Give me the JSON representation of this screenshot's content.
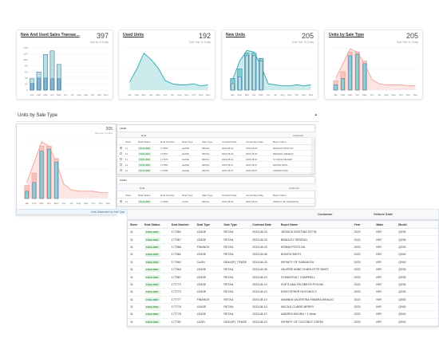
{
  "cards": [
    {
      "title": "New And Used Sales Transac...",
      "number": "397",
      "sub": "Total as of Today"
    },
    {
      "title": "Used Units",
      "number": "192",
      "sub": "Total Year To Today"
    },
    {
      "title": "New Units",
      "number": "205",
      "sub": "Total Year To Today"
    },
    {
      "title": "Units by Sale Type",
      "number": "205",
      "sub": "Total Year To Today"
    }
  ],
  "months": [
    "Jan",
    "Feb",
    "Mar",
    "Apr",
    "May",
    "Jun",
    "Jul",
    "Aug",
    "Sep",
    "Oct",
    "Nov",
    "Dec"
  ],
  "chart_data": [
    {
      "type": "bar",
      "title": "New And Used Sales Transac...",
      "categories": [
        "Jan",
        "Feb",
        "Mar",
        "Apr",
        "May",
        "Jun",
        "Jul",
        "Aug",
        "Sep",
        "Oct",
        "Nov",
        "Dec"
      ],
      "ylim": [
        0,
        140
      ],
      "yticks": [
        0,
        20,
        40,
        60,
        80,
        100,
        120,
        140
      ],
      "series": [
        {
          "values": [
            38,
            60,
            118,
            130,
            85,
            0,
            0,
            0,
            0,
            0,
            0,
            0
          ]
        },
        {
          "values": [
            22,
            40,
            40,
            38,
            38,
            0,
            0,
            0,
            0,
            0,
            0,
            0
          ]
        }
      ]
    },
    {
      "type": "area",
      "title": "Used Units",
      "categories": [
        "Jan",
        "Feb",
        "Mar",
        "Apr",
        "May",
        "Jun",
        "Jul",
        "Aug",
        "Sep",
        "Oct",
        "Nov",
        "Dec"
      ],
      "ylim": [
        0,
        80
      ],
      "series": [
        {
          "values": [
            15,
            40,
            70,
            58,
            42,
            18,
            12,
            10,
            10,
            12,
            8,
            10
          ]
        }
      ]
    },
    {
      "type": "bar",
      "title": "New Units",
      "categories": [
        "Jan",
        "Feb",
        "Mar",
        "Apr",
        "May",
        "Jun",
        "Jul",
        "Aug",
        "Sep",
        "Oct",
        "Nov",
        "Dec"
      ],
      "ylim": [
        0,
        80
      ],
      "series": [
        {
          "values": [
            22,
            40,
            70,
            70,
            60,
            0,
            0,
            0,
            0,
            0,
            0,
            0
          ]
        },
        {
          "values": [
            12,
            25,
            65,
            65,
            55,
            0,
            0,
            0,
            0,
            0,
            0,
            0
          ]
        },
        {
          "values": [
            20,
            55,
            75,
            72,
            45,
            12,
            10,
            8,
            8,
            10,
            8,
            10
          ],
          "line": true
        }
      ]
    },
    {
      "type": "bar",
      "title": "Units by Sale Type",
      "categories": [
        "Jan",
        "Feb",
        "Mar",
        "Apr",
        "May",
        "Jun",
        "Jul",
        "Aug",
        "Sep",
        "Oct",
        "Nov",
        "Dec"
      ],
      "ylim": [
        0,
        80
      ],
      "series": [
        {
          "values": [
            18,
            35,
            72,
            72,
            55,
            0,
            0,
            0,
            0,
            0,
            0,
            0
          ]
        },
        {
          "values": [
            10,
            22,
            65,
            68,
            50,
            0,
            0,
            0,
            0,
            0,
            0,
            0
          ]
        },
        {
          "values": [
            22,
            50,
            78,
            72,
            50,
            20,
            12,
            10,
            10,
            10,
            8,
            8
          ],
          "line": true
        }
      ]
    },
    {
      "type": "bar",
      "title": "Units by Sale Type",
      "categories": [
        "Jan",
        "Feb",
        "Mar",
        "Apr",
        "May",
        "Jun",
        "Jul",
        "Aug",
        "Sep",
        "Oct",
        "Nov",
        "Dec"
      ],
      "ylim": [
        0,
        80
      ],
      "series": [
        {
          "values": [
            18,
            35,
            72,
            72,
            55,
            0,
            0,
            0,
            0,
            0,
            0,
            0
          ]
        },
        {
          "values": [
            10,
            22,
            65,
            68,
            50,
            0,
            0,
            0,
            0,
            0,
            0,
            0
          ]
        },
        {
          "values": [
            22,
            50,
            78,
            72,
            50,
            20,
            12,
            10,
            10,
            10,
            8,
            8
          ],
          "line": true
        }
      ]
    }
  ],
  "mid_panel": {
    "title": "Units by Sale Type",
    "number": "205",
    "sub": "Total Year To Today",
    "footer": "Units Distributed by Sale Type"
  },
  "lead_panel": {
    "title": "LEAD",
    "header1": "Deal",
    "header2": "Customer",
    "cols": [
      "Store",
      "Deal Status",
      "Deal Number",
      "Deal Type",
      "Sale Type",
      "Contract Date",
      "Accounting Date",
      "Buyer Name"
    ],
    "rows": [
      [
        "11",
        "FINALIZED",
        "177560",
        "LEASE",
        "RETAIL",
        "2023-08-03",
        "2023-08-03",
        "JESSICA CRISTINA"
      ],
      [
        "11",
        "FINALIZED",
        "177567",
        "LEASE",
        "RETAIL",
        "2023-08-03",
        "2023-08-03",
        "BRADLEY SEDENO"
      ],
      [
        "11",
        "FINALIZED",
        "177578",
        "LEASE",
        "RETAIL",
        "2023-08-04",
        "2023-08-04",
        "SYLVANA FELDER"
      ],
      [
        "11",
        "FINALIZED",
        "177581",
        "LEASE",
        "RETAIL",
        "2023-08-07",
        "2023-08-07",
        "ELIANA VIDAL"
      ],
      [
        "11",
        "FINALIZED",
        "177586",
        "LEASE",
        "RETAIL",
        "2023-08-07",
        "2023-08-07",
        "ANDRE KOHN"
      ]
    ]
  },
  "cash_panel": {
    "title": "CASH",
    "header1": "Deal",
    "header2": "Customer",
    "cols": [
      "Store",
      "Deal Status",
      "Deal Number",
      "Deal Type",
      "Sale Type",
      "Contract Date",
      "Accounting Date",
      "Buyer Name"
    ],
    "rows": [
      [
        "11",
        "FINALIZED",
        "177569",
        "CASH",
        "RETAIL",
        "2023-08-03",
        "2023-08-03",
        "INFINITY OF SARASOTA"
      ]
    ]
  },
  "table": {
    "top_labels": [
      "Customer",
      "Vehicle Sold"
    ],
    "columns": [
      "Store",
      "Deal Status",
      "Deal Number",
      "Deal Type",
      "Sale Type",
      "Contract Date",
      "Buyer Name",
      "Year",
      "Make",
      "Model"
    ],
    "rows": [
      [
        "11",
        "FINALIZED",
        "177560",
        "LEASE",
        "RETAIL",
        "2023-08-03",
        "JESSICA CRISTINA TETTA",
        "2023",
        "INFI",
        "QX55"
      ],
      [
        "11",
        "FINALIZED",
        "177567",
        "LEASE",
        "RETAIL",
        "2023-08-03",
        "BRADLEY SEDENO",
        "2023",
        "INFI",
        "QX55"
      ],
      [
        "11",
        "FINALIZED",
        "177568",
        "FINANCE",
        "RETAIL",
        "2023-08-03",
        "KENNA POSTLGA",
        "2023",
        "INFI",
        "QX50"
      ],
      [
        "11",
        "FINALIZED",
        "177561",
        "LEASE",
        "RETAIL",
        "2023-08-06",
        "BONITA SMITH",
        "2023",
        "INFI",
        "QX60"
      ],
      [
        "11",
        "FINALIZED",
        "177562",
        "CASH",
        "DEALER_TRADE",
        "2023-08-03",
        "INFINITY OF SARASOTA",
        "2023",
        "INFI",
        "QX60"
      ],
      [
        "11",
        "FINALIZED",
        "177564",
        "LEASE",
        "RETAIL",
        "2023-08-06",
        "VALERIE ANNE CHARLOTTE BIHET",
        "2023",
        "INFI",
        "QX55"
      ],
      [
        "11",
        "FINALIZED",
        "177567",
        "LEASE",
        "RETAIL",
        "2023-08-10",
        "SYMANTHA T CAMPBELL",
        "2023",
        "INFI",
        "QX55"
      ],
      [
        "11",
        "FINALIZED",
        "177772",
        "LEASE",
        "RETAIL",
        "2023-08-10",
        "SVETLANA FELDBEYN POLYAK",
        "2023",
        "INFI",
        "QX55"
      ],
      [
        "11",
        "FINALIZED",
        "177773",
        "LEASE",
        "RETAIL",
        "2023-08-10",
        "KRISTOPHER RUYONOCY",
        "2023",
        "INFI",
        "QX55"
      ],
      [
        "11",
        "FINALIZED",
        "177777",
        "FINANCE",
        "RETAIL",
        "2023-08-10",
        "AMANDA VALENTINA FABARA ARAUJO",
        "2023",
        "INFI",
        "QX60"
      ],
      [
        "11",
        "FINALIZED",
        "177778",
        "LEASE",
        "RETAIL",
        "2023-08-10",
        "NICOLE CLAIRE MERRY",
        "2023",
        "INFI",
        "QX60"
      ],
      [
        "11",
        "FINALIZED",
        "177776",
        "LEASE",
        "RETAIL",
        "2023-08-10",
        "ANDREA NOURA + 1 More",
        "2023",
        "INFI",
        "QX60"
      ],
      [
        "11",
        "FINALIZED",
        "177781",
        "CASH",
        "DEALER_TRADE",
        "2023-08-10",
        "INFINITY OF COCONUT CREEK",
        "2023",
        "INFI",
        "QX60"
      ]
    ]
  },
  "colors": {
    "bar_light": "#b8dfe3",
    "bar_dark": "#4a7fa4",
    "teal": "#2aa9ae",
    "teal_fill": "#bfe6e8",
    "salmon": "#f1a29a",
    "salmon_fill": "#fbe0dd",
    "green_badge": "#3a8a46"
  }
}
